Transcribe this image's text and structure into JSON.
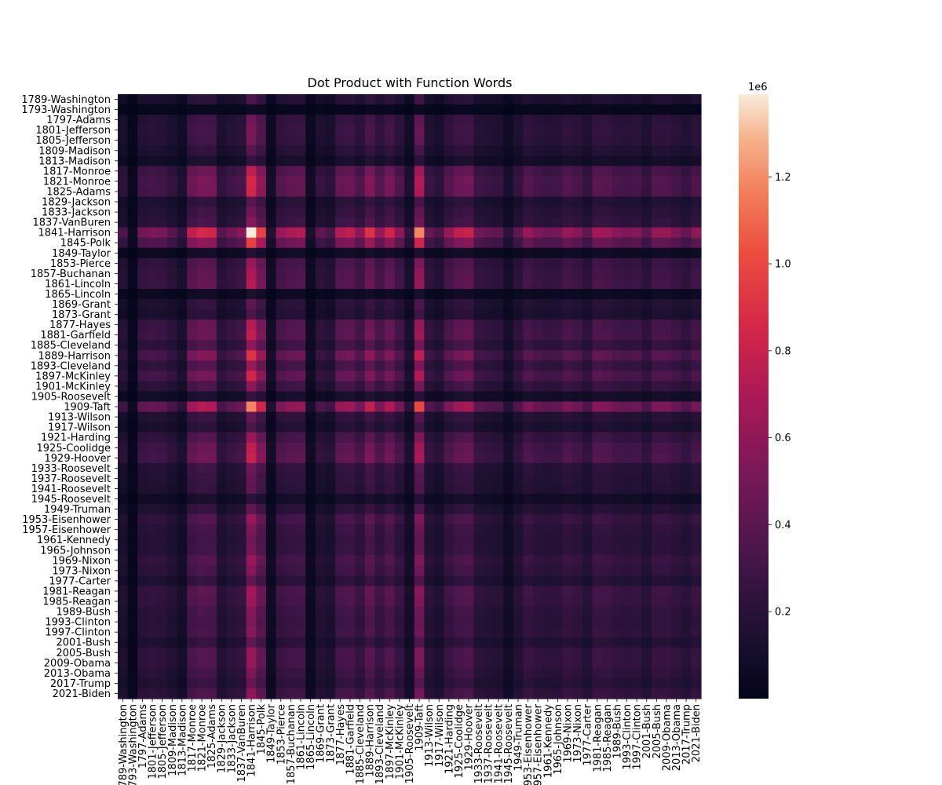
{
  "chart_data": {
    "type": "heatmap",
    "title": "Dot Product with Function Words",
    "xlabel": "",
    "ylabel": "",
    "labels": [
      "1789-Washington",
      "1793-Washington",
      "1797-Adams",
      "1801-Jefferson",
      "1805-Jefferson",
      "1809-Madison",
      "1813-Madison",
      "1817-Monroe",
      "1821-Monroe",
      "1825-Adams",
      "1829-Jackson",
      "1833-Jackson",
      "1837-VanBuren",
      "1841-Harrison",
      "1845-Polk",
      "1849-Taylor",
      "1853-Pierce",
      "1857-Buchanan",
      "1861-Lincoln",
      "1865-Lincoln",
      "1869-Grant",
      "1873-Grant",
      "1877-Hayes",
      "1881-Garfield",
      "1885-Cleveland",
      "1889-Harrison",
      "1893-Cleveland",
      "1897-McKinley",
      "1901-McKinley",
      "1905-Roosevelt",
      "1909-Taft",
      "1913-Wilson",
      "1917-Wilson",
      "1921-Harding",
      "1925-Coolidge",
      "1929-Hoover",
      "1933-Roosevelt",
      "1937-Roosevelt",
      "1941-Roosevelt",
      "1945-Roosevelt",
      "1949-Truman",
      "1953-Eisenhower",
      "1957-Eisenhower",
      "1961-Kennedy",
      "1965-Johnson",
      "1969-Nixon",
      "1973-Nixon",
      "1977-Carter",
      "1981-Reagan",
      "1985-Reagan",
      "1989-Bush",
      "1993-Clinton",
      "1997-Clinton",
      "2001-Bush",
      "2005-Bush",
      "2009-Obama",
      "2013-Obama",
      "2017-Trump",
      "2021-Biden"
    ],
    "value_model": "outer_product",
    "row_factor": [
      0.25,
      0.05,
      0.35,
      0.38,
      0.36,
      0.28,
      0.18,
      0.55,
      0.62,
      0.6,
      0.28,
      0.35,
      0.4,
      1.0,
      0.7,
      0.12,
      0.45,
      0.5,
      0.52,
      0.1,
      0.3,
      0.25,
      0.52,
      0.55,
      0.42,
      0.65,
      0.45,
      0.6,
      0.42,
      0.18,
      0.85,
      0.32,
      0.25,
      0.45,
      0.55,
      0.58,
      0.35,
      0.32,
      0.3,
      0.15,
      0.3,
      0.45,
      0.38,
      0.35,
      0.36,
      0.45,
      0.4,
      0.3,
      0.48,
      0.46,
      0.4,
      0.38,
      0.4,
      0.3,
      0.44,
      0.44,
      0.38,
      0.32,
      0.42
    ],
    "colorbar": {
      "min": 0,
      "max": 1390000,
      "ticks": [
        0.2,
        0.4,
        0.6,
        0.8,
        1.0,
        1.2
      ],
      "tick_labels": [
        "0.2",
        "0.4",
        "0.6",
        "0.8",
        "1.0",
        "1.2"
      ],
      "offset_text": "1e6",
      "colormap": "rocket"
    }
  }
}
